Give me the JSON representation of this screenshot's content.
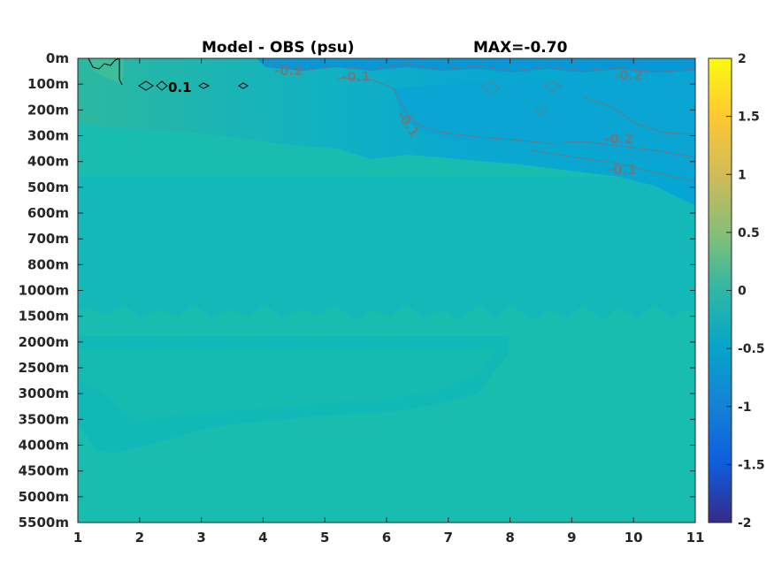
{
  "chart_data": {
    "type": "heatmap",
    "title": "Model - OBS (psu)",
    "max_label": "MAX=-0.70",
    "xlabel": "",
    "ylabel": "",
    "x_ticks": [
      "1",
      "2",
      "3",
      "4",
      "5",
      "6",
      "7",
      "8",
      "9",
      "10",
      "11"
    ],
    "xlim": [
      1,
      11
    ],
    "y_ticks": [
      "0m",
      "100m",
      "200m",
      "300m",
      "400m",
      "500m",
      "600m",
      "700m",
      "800m",
      "1000m",
      "1500m",
      "2000m",
      "2500m",
      "3000m",
      "3500m",
      "4000m",
      "4500m",
      "5000m",
      "5500m"
    ],
    "colorbar": {
      "range": [
        -2,
        2
      ],
      "ticks": [
        "2",
        "1.5",
        "1",
        "0.5",
        "0",
        "-0.5",
        "-1",
        "-1.5",
        "-2"
      ],
      "colormap": "parula",
      "colors": [
        "#352a87",
        "#0f5cdd",
        "#1481d6",
        "#06a4ca",
        "#2eb7a4",
        "#87bf77",
        "#d1bb59",
        "#fec832",
        "#f9fb0e"
      ]
    },
    "contour_levels_shown": [
      {
        "label": "0.1",
        "x": 2.6,
        "depth": "100m",
        "color": "#000000"
      },
      {
        "label": "-0.2",
        "x": 4.4,
        "depth": "0m",
        "color": "#8c6a6a"
      },
      {
        "label": "-0.1",
        "x": 5.5,
        "depth": "100m",
        "color": "#8c6a6a"
      },
      {
        "label": "-0.1",
        "x": 6.3,
        "depth": "300m",
        "color": "#8c6a6a"
      },
      {
        "label": "-0.2",
        "x": 10.0,
        "depth": "100m",
        "color": "#8c6a6a"
      },
      {
        "label": "-0.2",
        "x": 9.8,
        "depth": "300m",
        "color": "#8c6a6a"
      },
      {
        "label": "-0.1",
        "x": 9.9,
        "depth": "400m",
        "color": "#8c6a6a"
      }
    ],
    "field_values": {
      "upper_right_surface": -0.25,
      "upper_left_surface": 0.12,
      "mid_depth_bulk": -0.02,
      "deep_bulk": 0.02
    },
    "grid": false
  }
}
